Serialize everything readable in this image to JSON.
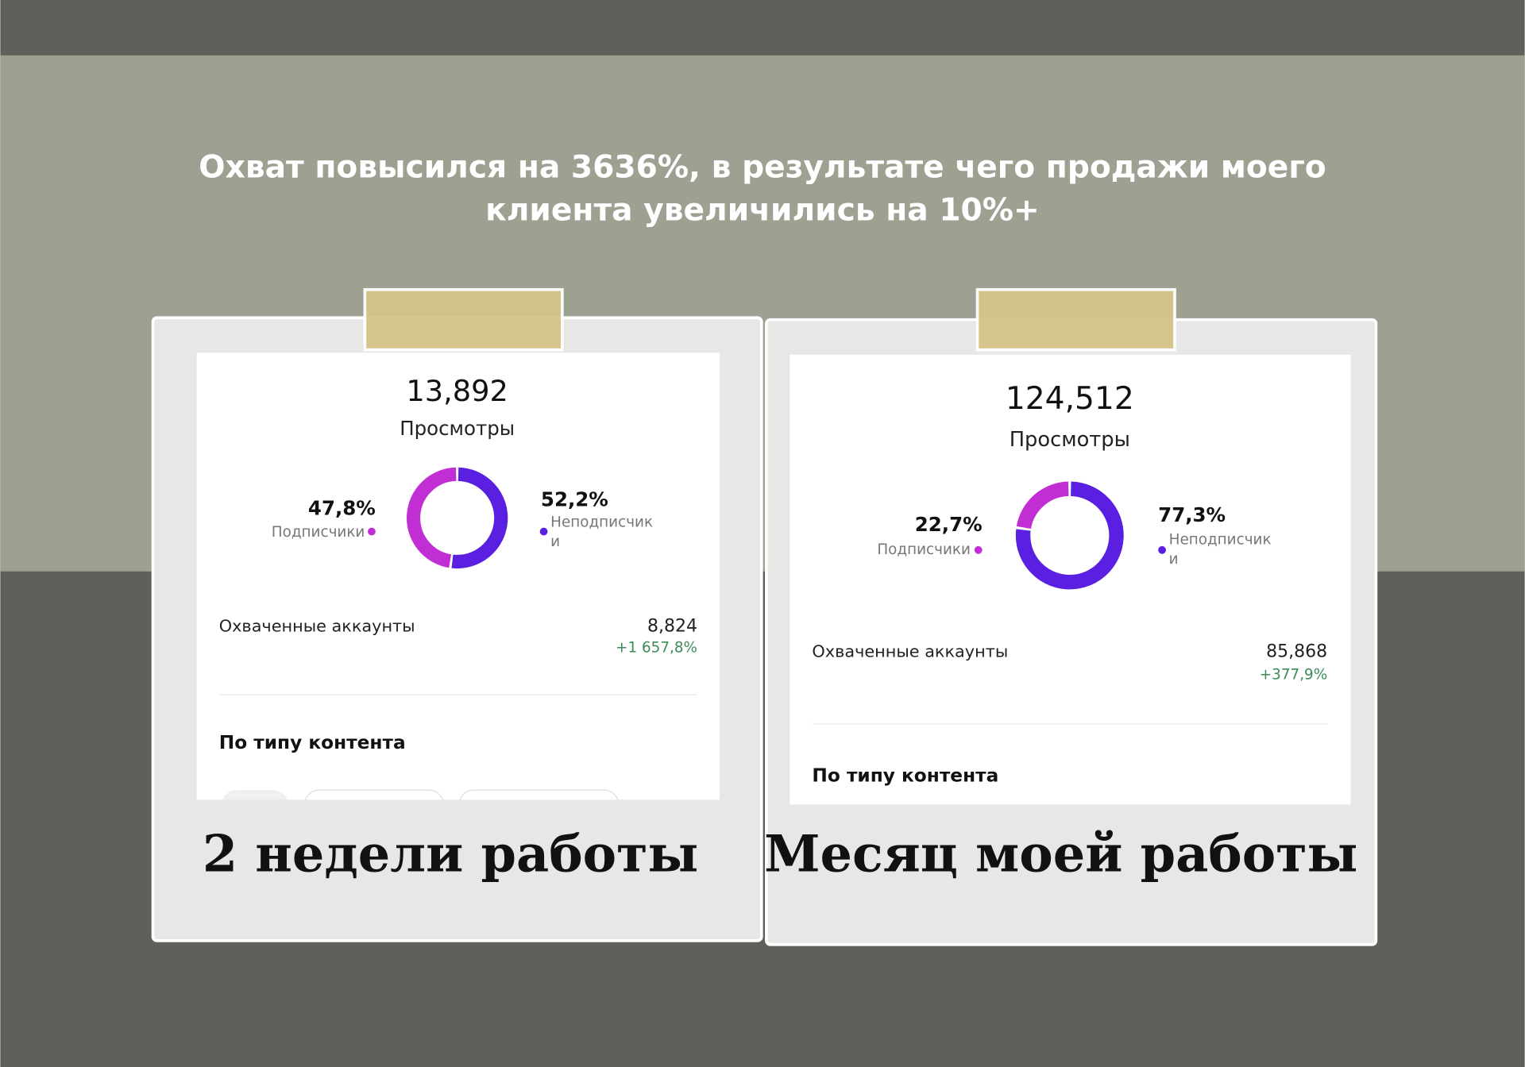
{
  "title": [
    "Охват повысился на 3636%, в результате чего продажи моего",
    "клиента увеличились на 10%+"
  ],
  "cards": [
    {
      "views": "13,892",
      "views_label": "Просмотры",
      "audience": [
        {
          "value": 47.8,
          "value_label": "47,8%",
          "name": "Подписчики",
          "color": "#c12fd4"
        },
        {
          "value": 52.2,
          "value_label": "52,2%",
          "name": "Неподписчики",
          "color": "#5a1fe0"
        }
      ],
      "reached_label": "Охваченные аккаунты",
      "reached": "8,824",
      "reached_change": "+1 657,8%",
      "section": "По типу контента",
      "caption": "2 недели работы"
    },
    {
      "views": "124,512",
      "views_label": "Просмотры",
      "audience": [
        {
          "value": 22.7,
          "value_label": "22,7%",
          "name": "Подписчики",
          "color": "#c12fd4"
        },
        {
          "value": 77.3,
          "value_label": "77,3%",
          "name": "Неподписчики",
          "color": "#5a1fe0"
        }
      ],
      "reached_label": "Охваченные аккаунты",
      "reached": "85,868",
      "reached_change": "+377,9%",
      "section": "По типу контента",
      "caption": "Месяц моей работы"
    }
  ]
}
